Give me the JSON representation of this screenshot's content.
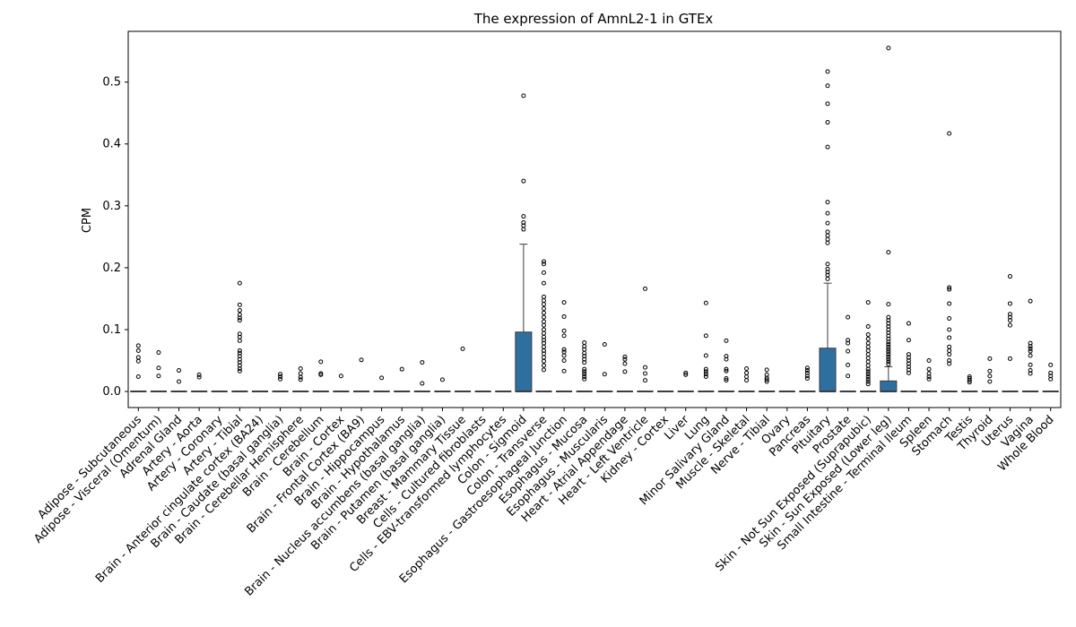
{
  "chart_data": {
    "type": "boxplot",
    "title": "The expression of AmnL2-1 in GTEx",
    "xlabel": "",
    "ylabel": "CPM",
    "ylim": [
      -0.026,
      0.582
    ],
    "yticks": [
      0.0,
      0.1,
      0.2,
      0.3,
      0.4,
      0.5
    ],
    "ytick_labels": [
      "0.0",
      "0.1",
      "0.2",
      "0.3",
      "0.4",
      "0.5"
    ],
    "box_color": "#2f6f9f",
    "grid": false,
    "categories": [
      "Adipose - Subcutaneous",
      "Adipose - Visceral (Omentum)",
      "Adrenal Gland",
      "Artery - Aorta",
      "Artery - Coronary",
      "Artery - Tibial",
      "Brain - Anterior cingulate cortex (BA24)",
      "Brain - Caudate (basal ganglia)",
      "Brain - Cerebellar Hemisphere",
      "Brain - Cerebellum",
      "Brain - Cortex",
      "Brain - Frontal Cortex (BA9)",
      "Brain - Hippocampus",
      "Brain - Hypothalamus",
      "Brain - Nucleus accumbens (basal ganglia)",
      "Brain - Putamen (basal ganglia)",
      "Breast - Mammary Tissue",
      "Cells - Cultured fibroblasts",
      "Cells - EBV-transformed lymphocytes",
      "Colon - Sigmoid",
      "Colon - Transverse",
      "Esophagus - Gastroesophageal Junction",
      "Esophagus - Mucosa",
      "Esophagus - Muscularis",
      "Heart - Atrial Appendage",
      "Heart - Left Ventricle",
      "Kidney - Cortex",
      "Liver",
      "Lung",
      "Minor Salivary Gland",
      "Muscle - Skeletal",
      "Nerve - Tibial",
      "Ovary",
      "Pancreas",
      "Pituitary",
      "Prostate",
      "Skin - Not Sun Exposed (Suprapubic)",
      "Skin - Sun Exposed (Lower leg)",
      "Small Intestine - Terminal Ileum",
      "Spleen",
      "Stomach",
      "Testis",
      "Thyroid",
      "Uterus",
      "Vagina",
      "Whole Blood"
    ],
    "boxes": [
      {
        "q1": 0,
        "median": 0,
        "q3": 0,
        "whisker_low": 0,
        "whisker_high": 0,
        "outliers": [
          0.024,
          0.049,
          0.055,
          0.066,
          0.074
        ]
      },
      {
        "q1": 0,
        "median": 0,
        "q3": 0,
        "whisker_low": 0,
        "whisker_high": 0,
        "outliers": [
          0.025,
          0.038,
          0.063
        ]
      },
      {
        "q1": 0,
        "median": 0,
        "q3": 0,
        "whisker_low": 0,
        "whisker_high": 0,
        "outliers": [
          0.016,
          0.034
        ]
      },
      {
        "q1": 0,
        "median": 0,
        "q3": 0,
        "whisker_low": 0,
        "whisker_high": 0,
        "outliers": [
          0.023,
          0.027
        ]
      },
      {
        "q1": 0,
        "median": 0,
        "q3": 0,
        "whisker_low": 0,
        "whisker_high": 0,
        "outliers": []
      },
      {
        "q1": 0,
        "median": 0,
        "q3": 0,
        "whisker_low": 0,
        "whisker_high": 0,
        "outliers": [
          0.033,
          0.037,
          0.042,
          0.047,
          0.052,
          0.057,
          0.062,
          0.066,
          0.082,
          0.088,
          0.093,
          0.115,
          0.119,
          0.124,
          0.131,
          0.14,
          0.175
        ]
      },
      {
        "q1": 0,
        "median": 0,
        "q3": 0,
        "whisker_low": 0,
        "whisker_high": 0,
        "outliers": []
      },
      {
        "q1": 0,
        "median": 0,
        "q3": 0,
        "whisker_low": 0,
        "whisker_high": 0,
        "outliers": [
          0.02,
          0.024,
          0.028
        ]
      },
      {
        "q1": 0,
        "median": 0,
        "q3": 0,
        "whisker_low": 0,
        "whisker_high": 0,
        "outliers": [
          0.019,
          0.023,
          0.029,
          0.037
        ]
      },
      {
        "q1": 0,
        "median": 0,
        "q3": 0,
        "whisker_low": 0,
        "whisker_high": 0,
        "outliers": [
          0.027,
          0.029,
          0.048
        ]
      },
      {
        "q1": 0,
        "median": 0,
        "q3": 0,
        "whisker_low": 0,
        "whisker_high": 0,
        "outliers": [
          0.025
        ]
      },
      {
        "q1": 0,
        "median": 0,
        "q3": 0,
        "whisker_low": 0,
        "whisker_high": 0,
        "outliers": [
          0.051
        ]
      },
      {
        "q1": 0,
        "median": 0,
        "q3": 0,
        "whisker_low": 0,
        "whisker_high": 0,
        "outliers": [
          0.022
        ]
      },
      {
        "q1": 0,
        "median": 0,
        "q3": 0,
        "whisker_low": 0,
        "whisker_high": 0,
        "outliers": [
          0.036
        ]
      },
      {
        "q1": 0,
        "median": 0,
        "q3": 0,
        "whisker_low": 0,
        "whisker_high": 0,
        "outliers": [
          0.013,
          0.047
        ]
      },
      {
        "q1": 0,
        "median": 0,
        "q3": 0,
        "whisker_low": 0,
        "whisker_high": 0,
        "outliers": [
          0.019
        ]
      },
      {
        "q1": 0,
        "median": 0,
        "q3": 0,
        "whisker_low": 0,
        "whisker_high": 0,
        "outliers": [
          0.069
        ]
      },
      {
        "q1": 0,
        "median": 0,
        "q3": 0,
        "whisker_low": 0,
        "whisker_high": 0,
        "outliers": []
      },
      {
        "q1": 0,
        "median": 0,
        "q3": 0,
        "whisker_low": 0,
        "whisker_high": 0,
        "outliers": []
      },
      {
        "q1": 0,
        "median": 0,
        "q3": 0.096,
        "whisker_low": 0,
        "whisker_high": 0.238,
        "outliers": [
          0.262,
          0.268,
          0.273,
          0.283,
          0.34,
          0.478
        ]
      },
      {
        "q1": 0,
        "median": 0,
        "q3": 0,
        "whisker_low": 0,
        "whisker_high": 0,
        "outliers": [
          0.035,
          0.042,
          0.049,
          0.055,
          0.061,
          0.066,
          0.072,
          0.078,
          0.083,
          0.088,
          0.094,
          0.1,
          0.107,
          0.113,
          0.12,
          0.127,
          0.134,
          0.141,
          0.147,
          0.153,
          0.175,
          0.192,
          0.206,
          0.21
        ]
      },
      {
        "q1": 0,
        "median": 0,
        "q3": 0,
        "whisker_low": 0,
        "whisker_high": 0,
        "outliers": [
          0.033,
          0.05,
          0.058,
          0.064,
          0.068,
          0.09,
          0.098,
          0.121,
          0.144
        ]
      },
      {
        "q1": 0,
        "median": 0,
        "q3": 0,
        "whisker_low": 0,
        "whisker_high": 0,
        "outliers": [
          0.02,
          0.024,
          0.028,
          0.032,
          0.036,
          0.047,
          0.052,
          0.057,
          0.062,
          0.068,
          0.073,
          0.079
        ]
      },
      {
        "q1": 0,
        "median": 0,
        "q3": 0,
        "whisker_low": 0,
        "whisker_high": 0,
        "outliers": [
          0.028,
          0.076
        ]
      },
      {
        "q1": 0,
        "median": 0,
        "q3": 0,
        "whisker_low": 0,
        "whisker_high": 0,
        "outliers": [
          0.032,
          0.045,
          0.052,
          0.056
        ]
      },
      {
        "q1": 0,
        "median": 0,
        "q3": 0,
        "whisker_low": 0,
        "whisker_high": 0,
        "outliers": [
          0.018,
          0.029,
          0.039,
          0.166
        ]
      },
      {
        "q1": 0,
        "median": 0,
        "q3": 0,
        "whisker_low": 0,
        "whisker_high": 0,
        "outliers": []
      },
      {
        "q1": 0,
        "median": 0,
        "q3": 0,
        "whisker_low": 0,
        "whisker_high": 0,
        "outliers": [
          0.027,
          0.03
        ]
      },
      {
        "q1": 0,
        "median": 0,
        "q3": 0,
        "whisker_low": 0,
        "whisker_high": 0,
        "outliers": [
          0.024,
          0.028,
          0.032,
          0.036,
          0.058,
          0.09,
          0.143
        ]
      },
      {
        "q1": 0,
        "median": 0,
        "q3": 0,
        "whisker_low": 0,
        "whisker_high": 0,
        "outliers": [
          0.018,
          0.021,
          0.033,
          0.036,
          0.052,
          0.057,
          0.082
        ]
      },
      {
        "q1": 0,
        "median": 0,
        "q3": 0,
        "whisker_low": 0,
        "whisker_high": 0,
        "outliers": [
          0.018,
          0.024,
          0.03,
          0.037
        ]
      },
      {
        "q1": 0,
        "median": 0,
        "q3": 0,
        "whisker_low": 0,
        "whisker_high": 0,
        "outliers": [
          0.016,
          0.019,
          0.022,
          0.027,
          0.035
        ]
      },
      {
        "q1": 0,
        "median": 0,
        "q3": 0,
        "whisker_low": 0,
        "whisker_high": 0,
        "outliers": []
      },
      {
        "q1": 0,
        "median": 0,
        "q3": 0,
        "whisker_low": 0,
        "whisker_high": 0,
        "outliers": [
          0.021,
          0.025,
          0.03,
          0.034,
          0.038
        ]
      },
      {
        "q1": 0,
        "median": 0,
        "q3": 0.07,
        "whisker_low": 0,
        "whisker_high": 0.175,
        "outliers": [
          0.182,
          0.188,
          0.193,
          0.198,
          0.206,
          0.24,
          0.246,
          0.252,
          0.258,
          0.272,
          0.288,
          0.306,
          0.395,
          0.435,
          0.465,
          0.494,
          0.517
        ]
      },
      {
        "q1": 0,
        "median": 0,
        "q3": 0,
        "whisker_low": 0,
        "whisker_high": 0,
        "outliers": [
          0.025,
          0.043,
          0.065,
          0.078,
          0.083,
          0.12
        ]
      },
      {
        "q1": 0,
        "median": 0,
        "q3": 0,
        "whisker_low": 0,
        "whisker_high": 0,
        "outliers": [
          0.012,
          0.016,
          0.02,
          0.024,
          0.028,
          0.032,
          0.036,
          0.042,
          0.048,
          0.054,
          0.06,
          0.066,
          0.072,
          0.078,
          0.085,
          0.092,
          0.105,
          0.144
        ]
      },
      {
        "q1": 0,
        "median": 0,
        "q3": 0.017,
        "whisker_low": 0,
        "whisker_high": 0.04,
        "outliers": [
          0.044,
          0.048,
          0.052,
          0.056,
          0.06,
          0.064,
          0.068,
          0.072,
          0.076,
          0.08,
          0.085,
          0.09,
          0.095,
          0.1,
          0.105,
          0.11,
          0.115,
          0.12,
          0.141,
          0.225,
          0.555
        ]
      },
      {
        "q1": 0,
        "median": 0,
        "q3": 0,
        "whisker_low": 0,
        "whisker_high": 0,
        "outliers": [
          0.03,
          0.035,
          0.04,
          0.045,
          0.05,
          0.055,
          0.06,
          0.083,
          0.11
        ]
      },
      {
        "q1": 0,
        "median": 0,
        "q3": 0,
        "whisker_low": 0,
        "whisker_high": 0,
        "outliers": [
          0.02,
          0.024,
          0.029,
          0.036,
          0.05
        ]
      },
      {
        "q1": 0,
        "median": 0,
        "q3": 0,
        "whisker_low": 0,
        "whisker_high": 0,
        "outliers": [
          0.045,
          0.05,
          0.06,
          0.066,
          0.072,
          0.087,
          0.1,
          0.118,
          0.142,
          0.165,
          0.168,
          0.417
        ]
      },
      {
        "q1": 0,
        "median": 0,
        "q3": 0,
        "whisker_low": 0,
        "whisker_high": 0,
        "outliers": [
          0.015,
          0.018,
          0.021,
          0.024
        ]
      },
      {
        "q1": 0,
        "median": 0,
        "q3": 0,
        "whisker_low": 0,
        "whisker_high": 0,
        "outliers": [
          0.016,
          0.025,
          0.033,
          0.053
        ]
      },
      {
        "q1": 0,
        "median": 0,
        "q3": 0,
        "whisker_low": 0,
        "whisker_high": 0,
        "outliers": [
          0.053,
          0.107,
          0.115,
          0.12,
          0.125,
          0.142,
          0.186
        ]
      },
      {
        "q1": 0,
        "median": 0,
        "q3": 0,
        "whisker_low": 0,
        "whisker_high": 0,
        "outliers": [
          0.029,
          0.034,
          0.043,
          0.058,
          0.065,
          0.069,
          0.073,
          0.078,
          0.146
        ]
      },
      {
        "q1": 0,
        "median": 0,
        "q3": 0,
        "whisker_low": 0,
        "whisker_high": 0,
        "outliers": [
          0.02,
          0.025,
          0.03,
          0.043
        ]
      }
    ]
  }
}
